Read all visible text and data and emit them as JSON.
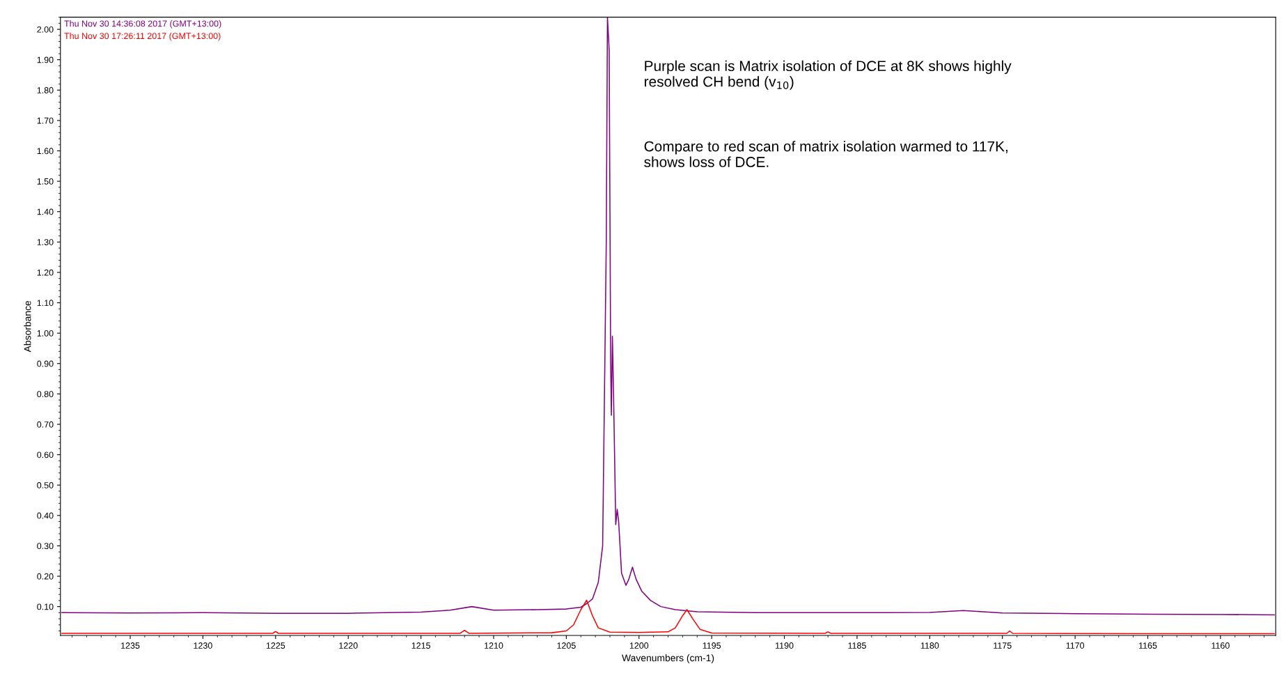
{
  "chart_data": {
    "type": "line",
    "xlabel": "Wavenumbers (cm-1)",
    "ylabel": "Absorbance",
    "xlim": [
      1239.8,
      1156.2
    ],
    "ylim": [
      0.005,
      2.04
    ],
    "xticks": [
      1235,
      1230,
      1225,
      1220,
      1215,
      1210,
      1205,
      1200,
      1195,
      1190,
      1185,
      1180,
      1175,
      1170,
      1165,
      1160
    ],
    "yticks": [
      {
        "value": 0.1,
        "label": "0.10"
      },
      {
        "value": 0.2,
        "label": "0.20"
      },
      {
        "value": 0.3,
        "label": "0.30"
      },
      {
        "value": 0.4,
        "label": "0.40"
      },
      {
        "value": 0.5,
        "label": "0.50"
      },
      {
        "value": 0.6,
        "label": "0.60"
      },
      {
        "value": 0.7,
        "label": "0.70"
      },
      {
        "value": 0.8,
        "label": "0.80"
      },
      {
        "value": 0.9,
        "label": "0.90"
      },
      {
        "value": 1.0,
        "label": "1.00"
      },
      {
        "value": 1.1,
        "label": "1.10"
      },
      {
        "value": 1.2,
        "label": "1.20"
      },
      {
        "value": 1.3,
        "label": "1.30"
      },
      {
        "value": 1.4,
        "label": "1.40"
      },
      {
        "value": 1.5,
        "label": "1.50"
      },
      {
        "value": 1.6,
        "label": "1.60"
      },
      {
        "value": 1.7,
        "label": "1.70"
      },
      {
        "value": 1.8,
        "label": "1.80"
      },
      {
        "value": 1.9,
        "label": "1.90"
      },
      {
        "value": 2.0,
        "label": "2.00"
      }
    ],
    "grid": false,
    "legend": "top left",
    "marker": "none",
    "line_style": "solid",
    "series": [
      {
        "name": "Thu Nov 30 14:36:08 2017 (GMT+13:00)",
        "color": "#800080",
        "x": [
          1239.7,
          1235,
          1230,
          1225,
          1220,
          1215,
          1213,
          1211.5,
          1210,
          1207,
          1205,
          1204,
          1203.6,
          1203.2,
          1202.8,
          1202.5,
          1202.35,
          1202.25,
          1202.17,
          1202.05,
          1201.95,
          1201.9,
          1201.83,
          1201.75,
          1201.6,
          1201.5,
          1201.4,
          1201.2,
          1200.9,
          1200.7,
          1200.45,
          1200.2,
          1199.8,
          1199.2,
          1198.5,
          1197.5,
          1196,
          1192,
          1185,
          1180,
          1177.7,
          1175,
          1170,
          1165,
          1160,
          1156.3
        ],
        "values": [
          0.08,
          0.079,
          0.08,
          0.078,
          0.078,
          0.082,
          0.088,
          0.1,
          0.088,
          0.09,
          0.092,
          0.098,
          0.11,
          0.125,
          0.18,
          0.3,
          0.9,
          1.31,
          2.04,
          1.93,
          0.9,
          0.73,
          0.99,
          0.8,
          0.37,
          0.42,
          0.38,
          0.21,
          0.17,
          0.19,
          0.23,
          0.19,
          0.15,
          0.12,
          0.1,
          0.09,
          0.083,
          0.08,
          0.08,
          0.081,
          0.087,
          0.079,
          0.077,
          0.075,
          0.074,
          0.073
        ]
      },
      {
        "name": "Thu Nov 30 17:26:11 2017 (GMT+13:00)",
        "color": "#ff0000",
        "x": [
          1239.7,
          1225.2,
          1225,
          1224.8,
          1212.3,
          1212,
          1211.7,
          1206,
          1205,
          1204.5,
          1204,
          1203.6,
          1203.2,
          1202.8,
          1202,
          1200,
          1198,
          1197.5,
          1197,
          1196.7,
          1196.3,
          1195.8,
          1195,
          1187.2,
          1187,
          1186.8,
          1174.7,
          1174.5,
          1174.3,
          1165,
          1156.3
        ],
        "values": [
          0.012,
          0.012,
          0.018,
          0.012,
          0.012,
          0.022,
          0.012,
          0.014,
          0.02,
          0.04,
          0.09,
          0.121,
          0.07,
          0.03,
          0.016,
          0.015,
          0.017,
          0.03,
          0.07,
          0.09,
          0.06,
          0.025,
          0.013,
          0.012,
          0.017,
          0.012,
          0.012,
          0.02,
          0.012,
          0.011,
          0.011
        ]
      }
    ],
    "annotations": [
      "Purple scan is Matrix isolation of DCE at 8K shows highly resolved CH bend (v$_{10}$)",
      "Compare to red scan of matrix isolation warmed to 117K, shows loss of DCE."
    ]
  }
}
